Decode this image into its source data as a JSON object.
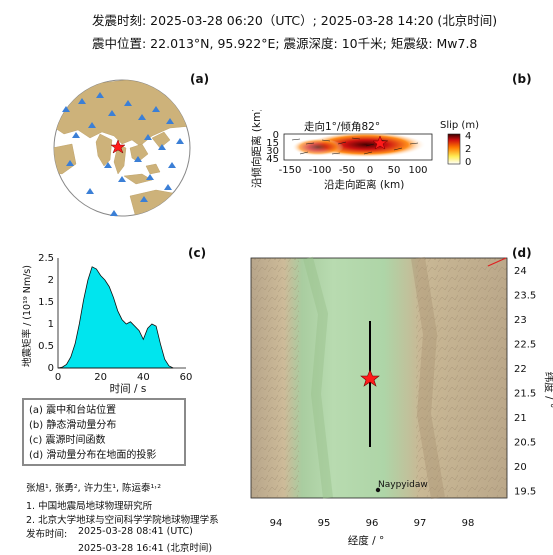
{
  "header": {
    "line1": "发震时刻: 2025-03-28 06:20（UTC）;   2025-03-28  14:20 (北京时间)",
    "line2": "震中位置: 22.013°N,  95.922°E;   震源深度: 10千米; 矩震级: Mw7.8"
  },
  "panels": {
    "a": {
      "label": "(a)"
    },
    "b": {
      "label": "(b)",
      "title": "走向1°/倾角82°",
      "colorbar_title": "Slip (m)",
      "colorbar_ticks": [
        "4",
        "2",
        "0"
      ],
      "xlabel": "沿走向距离 (km)",
      "ylabel": "沿倾向距离 (km)",
      "xticks": [
        "-150",
        "-100",
        "-50",
        "0",
        "50",
        "100"
      ],
      "yticks": [
        "0",
        "15",
        "30",
        "45"
      ],
      "colors": {
        "high": "#4a0000",
        "mid": "#e01010",
        "low": "#ffee55",
        "zero": "#ffffff"
      }
    },
    "c": {
      "label": "(c)"
    },
    "d": {
      "label": "(d)",
      "xlabel": "经度 / °",
      "ylabel": "纬度 / °",
      "xticks": [
        "94",
        "95",
        "96",
        "97",
        "98"
      ],
      "yticks": [
        "24",
        "23.5",
        "23",
        "22.5",
        "22",
        "21.5",
        "21",
        "20.5",
        "20",
        "19.5"
      ],
      "city": "Naypyidaw"
    }
  },
  "chart_data": {
    "type": "area",
    "title": "",
    "xlabel": "时间 / s",
    "ylabel": "地震矩率 / (10¹⁹ Nm/s)",
    "xlim": [
      0,
      60
    ],
    "ylim": [
      0,
      2.5
    ],
    "xticks": [
      "0",
      "20",
      "40",
      "60"
    ],
    "yticks": [
      "0",
      "0.5",
      "1",
      "1.5",
      "2",
      "2.5"
    ],
    "fill_color": "#00e5ee",
    "x": [
      0,
      2,
      4,
      6,
      8,
      10,
      12,
      14,
      16,
      18,
      20,
      22,
      24,
      26,
      28,
      30,
      32,
      34,
      36,
      38,
      40,
      42,
      44,
      46,
      48,
      50,
      52,
      54
    ],
    "y": [
      0,
      0.02,
      0.08,
      0.25,
      0.55,
      1.0,
      1.55,
      2.0,
      2.3,
      2.25,
      2.1,
      2.0,
      1.85,
      1.6,
      1.3,
      1.1,
      1.0,
      1.05,
      0.95,
      0.85,
      0.65,
      0.9,
      1.0,
      0.95,
      0.55,
      0.2,
      0.05,
      0
    ]
  },
  "legend": {
    "items": [
      "(a) 震中和台站位置",
      "(b) 静态滑动量分布",
      "(c) 震源时间函数",
      "(d) 滑动量分布在地面的投影"
    ]
  },
  "credits": {
    "authors": "张旭¹, 张勇², 许力生¹, 陈运泰¹˒²",
    "affil1": "1. 中国地震局地球物理研究所",
    "affil2": "2. 北京大学地球与空间科学学院地球物理学系",
    "release_label": "发布时间:",
    "release_utc": "2025-03-28  08:41 (UTC)",
    "release_bj": "2025-03-28  16:41 (北京时间)"
  }
}
